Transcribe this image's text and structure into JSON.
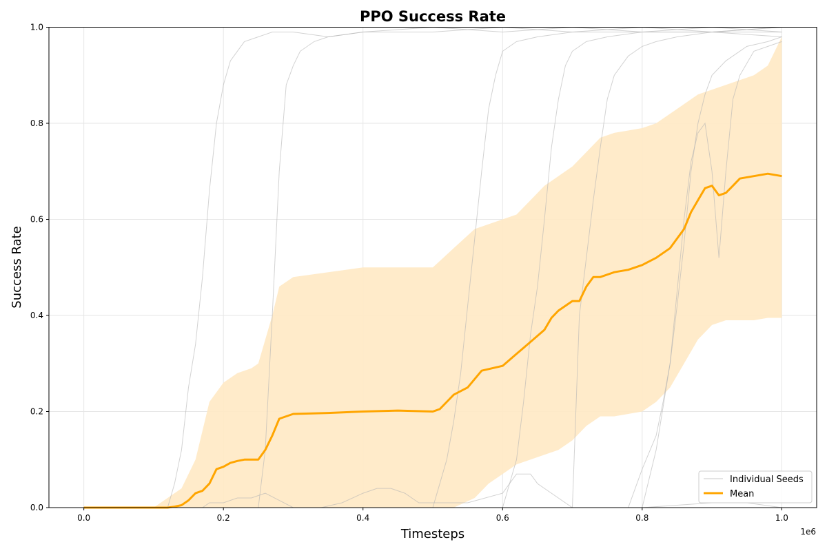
{
  "chart_data": {
    "type": "line",
    "title": "PPO Success Rate",
    "xlabel": "Timesteps",
    "ylabel": "Success Rate",
    "x_offset_label": "1e6",
    "xlim": [
      -0.05,
      1.05
    ],
    "ylim": [
      0,
      1.0
    ],
    "xticks": [
      0.0,
      0.2,
      0.4,
      0.6,
      0.8,
      1.0
    ],
    "xtick_labels": [
      "0.0",
      "0.2",
      "0.4",
      "0.6",
      "0.8",
      "1.0"
    ],
    "yticks": [
      0.0,
      0.2,
      0.4,
      0.6,
      0.8,
      1.0
    ],
    "ytick_labels": [
      "0.0",
      "0.2",
      "0.4",
      "0.6",
      "0.8",
      "1.0"
    ],
    "grid": true,
    "legend_position": "lower-right",
    "legend": [
      {
        "label": "Individual Seeds",
        "color": "#c8c8c8",
        "style": "thin"
      },
      {
        "label": "Mean",
        "color": "#ffa500",
        "style": "thick"
      }
    ],
    "colors": {
      "seeds": "#b4b4b4",
      "mean": "#ffa500",
      "band": "#ffe9c4"
    },
    "mean_series": {
      "x": [
        0.0,
        0.1,
        0.12,
        0.13,
        0.14,
        0.15,
        0.16,
        0.17,
        0.18,
        0.19,
        0.2,
        0.21,
        0.22,
        0.23,
        0.245,
        0.25,
        0.26,
        0.27,
        0.28,
        0.29,
        0.3,
        0.35,
        0.4,
        0.45,
        0.5,
        0.51,
        0.52,
        0.53,
        0.55,
        0.57,
        0.6,
        0.62,
        0.64,
        0.66,
        0.67,
        0.68,
        0.7,
        0.71,
        0.72,
        0.73,
        0.74,
        0.76,
        0.78,
        0.8,
        0.82,
        0.84,
        0.86,
        0.87,
        0.88,
        0.89,
        0.9,
        0.91,
        0.92,
        0.93,
        0.94,
        0.96,
        0.98,
        1.0
      ],
      "y": [
        0.0,
        0.0,
        0.0,
        0.002,
        0.005,
        0.015,
        0.03,
        0.035,
        0.05,
        0.08,
        0.085,
        0.093,
        0.097,
        0.1,
        0.1,
        0.1,
        0.12,
        0.15,
        0.185,
        0.19,
        0.195,
        0.197,
        0.2,
        0.202,
        0.2,
        0.205,
        0.22,
        0.235,
        0.25,
        0.285,
        0.295,
        0.32,
        0.345,
        0.37,
        0.395,
        0.41,
        0.43,
        0.43,
        0.46,
        0.48,
        0.48,
        0.49,
        0.495,
        0.505,
        0.52,
        0.54,
        0.58,
        0.615,
        0.64,
        0.665,
        0.67,
        0.65,
        0.655,
        0.67,
        0.685,
        0.69,
        0.695,
        0.69
      ]
    },
    "band": {
      "x": [
        0.0,
        0.1,
        0.14,
        0.16,
        0.18,
        0.2,
        0.22,
        0.24,
        0.25,
        0.27,
        0.28,
        0.3,
        0.4,
        0.5,
        0.53,
        0.56,
        0.58,
        0.6,
        0.62,
        0.64,
        0.66,
        0.68,
        0.7,
        0.72,
        0.74,
        0.76,
        0.78,
        0.8,
        0.82,
        0.84,
        0.86,
        0.88,
        0.9,
        0.92,
        0.94,
        0.96,
        0.98,
        1.0
      ],
      "upper": [
        0.0,
        0.0,
        0.04,
        0.1,
        0.22,
        0.26,
        0.28,
        0.29,
        0.3,
        0.4,
        0.46,
        0.48,
        0.5,
        0.5,
        0.54,
        0.58,
        0.59,
        0.6,
        0.61,
        0.64,
        0.67,
        0.69,
        0.71,
        0.74,
        0.77,
        0.78,
        0.785,
        0.79,
        0.8,
        0.82,
        0.84,
        0.86,
        0.87,
        0.88,
        0.89,
        0.9,
        0.92,
        0.98
      ],
      "lower": [
        0.0,
        0.0,
        0.0,
        0.0,
        0.0,
        0.0,
        0.0,
        0.0,
        0.0,
        0.0,
        0.0,
        0.0,
        0.0,
        0.0,
        0.0,
        0.02,
        0.05,
        0.07,
        0.09,
        0.1,
        0.11,
        0.12,
        0.14,
        0.17,
        0.19,
        0.19,
        0.195,
        0.2,
        0.22,
        0.25,
        0.3,
        0.35,
        0.38,
        0.39,
        0.39,
        0.39,
        0.395,
        0.395
      ]
    },
    "seeds": [
      {
        "x": [
          0.0,
          0.12,
          0.13,
          0.14,
          0.15,
          0.16,
          0.17,
          0.18,
          0.19,
          0.2,
          0.21,
          0.22,
          0.23,
          0.25,
          0.27,
          0.3,
          0.35,
          0.4,
          0.5,
          0.6,
          0.7,
          0.8,
          0.9,
          1.0
        ],
        "y": [
          0.0,
          0.0,
          0.05,
          0.12,
          0.25,
          0.34,
          0.48,
          0.66,
          0.8,
          0.88,
          0.93,
          0.95,
          0.97,
          0.98,
          0.99,
          0.99,
          0.98,
          0.99,
          1.0,
          0.99,
          1.0,
          0.99,
          0.99,
          1.0
        ]
      },
      {
        "x": [
          0.0,
          0.25,
          0.26,
          0.27,
          0.28,
          0.29,
          0.3,
          0.31,
          0.33,
          0.35,
          0.4,
          0.45,
          0.5,
          0.6,
          0.7,
          0.8,
          0.9,
          1.0
        ],
        "y": [
          0.0,
          0.0,
          0.12,
          0.4,
          0.7,
          0.88,
          0.92,
          0.95,
          0.97,
          0.98,
          0.99,
          0.99,
          0.99,
          1.0,
          0.99,
          1.0,
          0.99,
          0.99
        ]
      },
      {
        "x": [
          0.0,
          0.5,
          0.52,
          0.53,
          0.54,
          0.55,
          0.56,
          0.57,
          0.58,
          0.59,
          0.6,
          0.62,
          0.65,
          0.7,
          0.8,
          0.9,
          1.0
        ],
        "y": [
          0.0,
          0.0,
          0.1,
          0.18,
          0.28,
          0.42,
          0.56,
          0.7,
          0.83,
          0.9,
          0.95,
          0.97,
          0.98,
          0.99,
          0.99,
          1.0,
          0.99
        ]
      },
      {
        "x": [
          0.0,
          0.6,
          0.62,
          0.63,
          0.64,
          0.65,
          0.66,
          0.67,
          0.68,
          0.69,
          0.7,
          0.72,
          0.75,
          0.8,
          0.9,
          1.0
        ],
        "y": [
          0.0,
          0.0,
          0.1,
          0.22,
          0.36,
          0.46,
          0.6,
          0.75,
          0.85,
          0.92,
          0.95,
          0.97,
          0.98,
          0.99,
          0.99,
          1.0
        ]
      },
      {
        "x": [
          0.0,
          0.7,
          0.71,
          0.72,
          0.73,
          0.74,
          0.75,
          0.76,
          0.77,
          0.78,
          0.8,
          0.82,
          0.85,
          0.9,
          1.0
        ],
        "y": [
          0.0,
          0.0,
          0.4,
          0.52,
          0.64,
          0.75,
          0.85,
          0.9,
          0.92,
          0.94,
          0.96,
          0.97,
          0.98,
          0.99,
          0.98
        ]
      },
      {
        "x": [
          0.0,
          0.78,
          0.8,
          0.82,
          0.83,
          0.84,
          0.85,
          0.86,
          0.87,
          0.88,
          0.89,
          0.9,
          0.92,
          0.95,
          0.98,
          1.0
        ],
        "y": [
          0.0,
          0.0,
          0.08,
          0.15,
          0.22,
          0.3,
          0.42,
          0.55,
          0.7,
          0.8,
          0.86,
          0.9,
          0.93,
          0.96,
          0.97,
          0.98
        ]
      },
      {
        "x": [
          0.0,
          0.8,
          0.82,
          0.84,
          0.85,
          0.86,
          0.87,
          0.88,
          0.89,
          0.9,
          0.91,
          0.92,
          0.93,
          0.94,
          0.96,
          1.0
        ],
        "y": [
          0.0,
          0.0,
          0.12,
          0.3,
          0.45,
          0.6,
          0.72,
          0.78,
          0.8,
          0.7,
          0.52,
          0.7,
          0.85,
          0.9,
          0.95,
          0.97
        ]
      },
      {
        "x": [
          0.0,
          0.17,
          0.18,
          0.2,
          0.22,
          0.24,
          0.26,
          0.3,
          0.34,
          0.37,
          0.4,
          0.42,
          0.44,
          0.46,
          0.48,
          0.55,
          0.6,
          0.62,
          0.64,
          0.65,
          0.66,
          0.7,
          0.8,
          0.9,
          0.95,
          1.0
        ],
        "y": [
          0.0,
          0.0,
          0.01,
          0.01,
          0.02,
          0.02,
          0.03,
          0.0,
          0.0,
          0.01,
          0.03,
          0.04,
          0.04,
          0.03,
          0.01,
          0.01,
          0.03,
          0.07,
          0.07,
          0.05,
          0.04,
          0.0,
          0.0,
          0.01,
          0.01,
          0.0
        ]
      }
    ]
  }
}
